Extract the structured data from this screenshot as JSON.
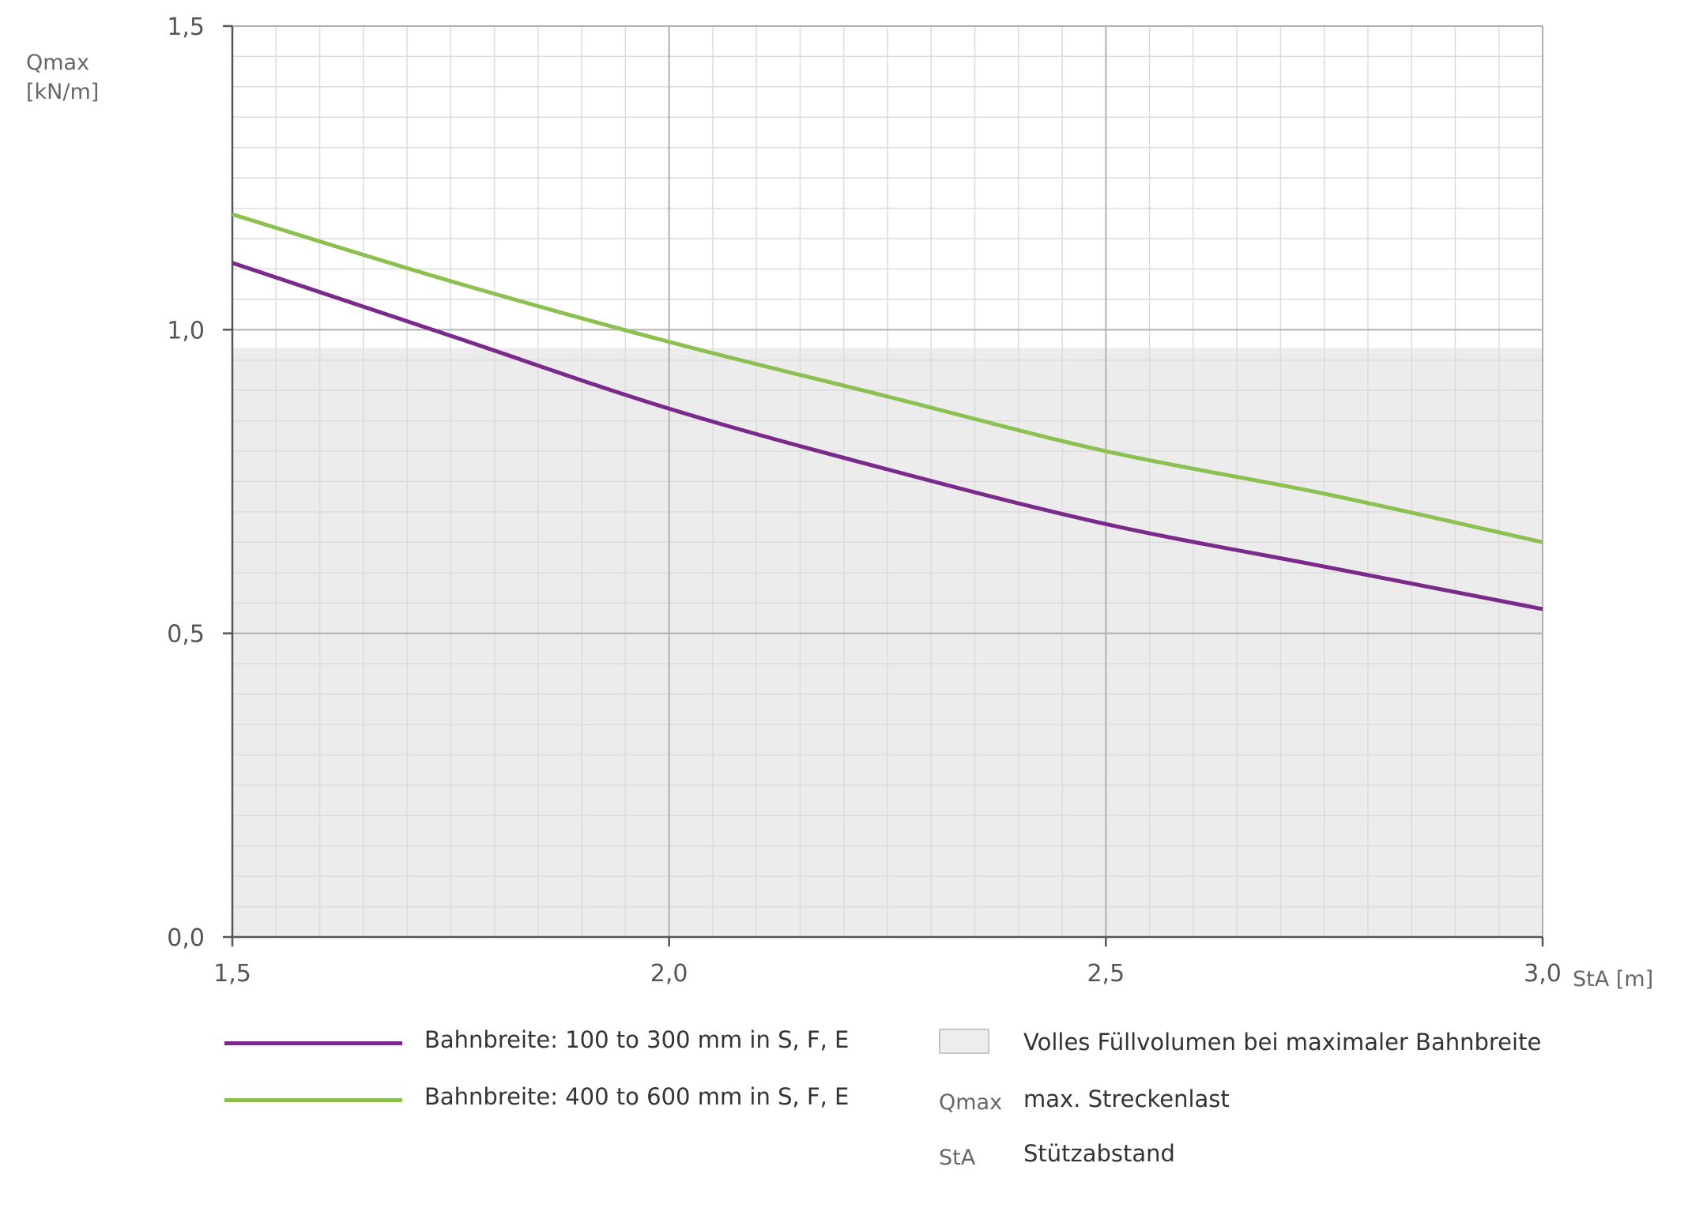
{
  "chart_data": {
    "type": "line",
    "xlabel": "StA [m]",
    "ylabel_line1": "Qmax",
    "ylabel_line2": "[kN/m]",
    "xlim": [
      1.5,
      3.0
    ],
    "ylim": [
      0.0,
      1.5
    ],
    "x_ticks": [
      1.5,
      2.0,
      2.5,
      3.0
    ],
    "x_tick_labels": [
      "1,5",
      "2,0",
      "2,5",
      "3,0"
    ],
    "y_ticks": [
      0.0,
      0.5,
      1.0,
      1.5
    ],
    "y_tick_labels": [
      "0,0",
      "0,5",
      "1,0",
      "1,5"
    ],
    "grid": true,
    "shaded_region": {
      "y_from": 0.0,
      "y_to": 0.97,
      "color": "#ececec",
      "label": "Volles Füllvolumen bei maximaler Bahnbreite"
    },
    "series": [
      {
        "name": "Bahnbreite: 100 to 300 mm in S, F, E",
        "color": "#7a2a8a",
        "x": [
          1.5,
          1.75,
          2.0,
          2.25,
          2.5,
          2.75,
          3.0
        ],
        "y": [
          1.11,
          0.99,
          0.87,
          0.77,
          0.68,
          0.61,
          0.54
        ]
      },
      {
        "name": "Bahnbreite: 400 to 600 mm in S, F, E",
        "color": "#8cc152",
        "x": [
          1.5,
          1.75,
          2.0,
          2.25,
          2.5,
          2.75,
          3.0
        ],
        "y": [
          1.19,
          1.08,
          0.98,
          0.89,
          0.8,
          0.73,
          0.65
        ]
      }
    ]
  },
  "legend": {
    "definitions": [
      {
        "abbr": "Qmax",
        "text": "max. Streckenlast"
      },
      {
        "abbr": "StA",
        "text": "Stützabstand"
      }
    ]
  }
}
